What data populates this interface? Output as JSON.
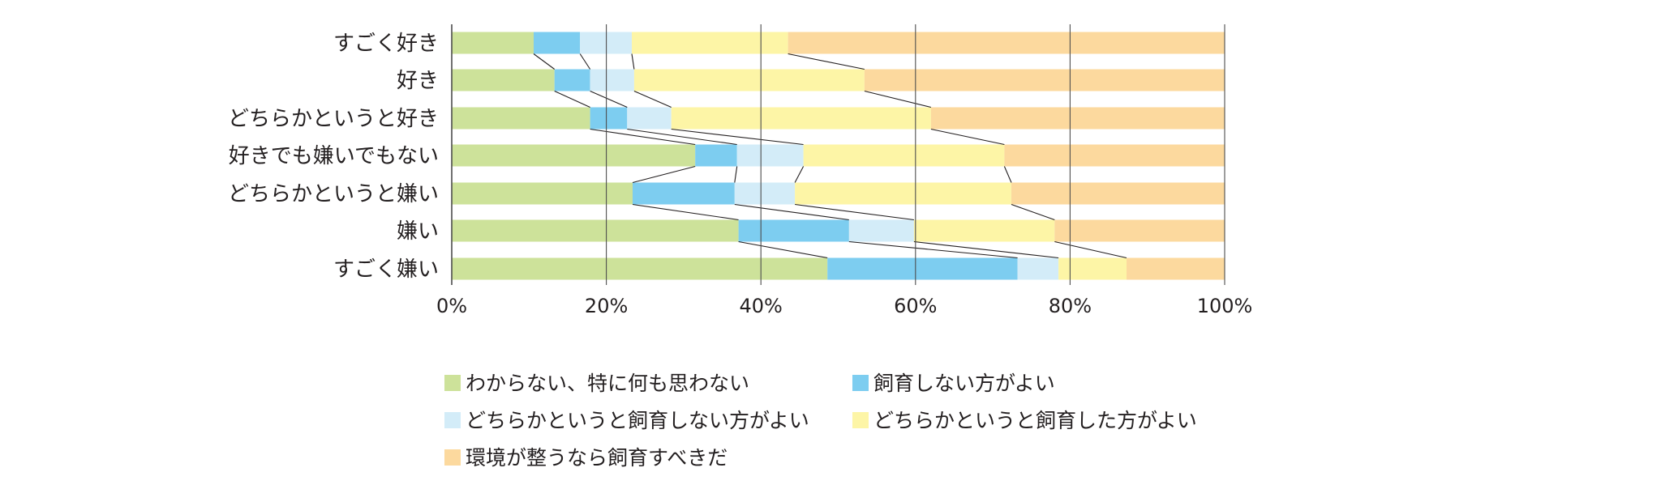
{
  "chart_data": {
    "type": "bar",
    "orientation": "horizontal",
    "stacked": true,
    "percent": true,
    "categories": [
      "すごく好き",
      "好き",
      "どちらかというと好き",
      "好きでも嫌いでもない",
      "どちらかというと嫌い",
      "嫌い",
      "すごく嫌い"
    ],
    "series": [
      {
        "name": "わからない、特に何も思わない",
        "color": "#cde29a",
        "values": [
          10.6,
          13.3,
          17.9,
          31.5,
          23.4,
          37.1,
          48.6
        ]
      },
      {
        "name": "飼育しない方がよい",
        "color": "#7dcdf0",
        "values": [
          6.0,
          4.6,
          4.8,
          5.4,
          13.2,
          14.3,
          24.6
        ]
      },
      {
        "name": "どちらかというと飼育しない方がよい",
        "color": "#d3ecf8",
        "values": [
          6.7,
          5.7,
          5.7,
          8.6,
          7.8,
          8.4,
          5.3
        ]
      },
      {
        "name": "どちらかというと飼育した方がよい",
        "color": "#fdf5a6",
        "values": [
          20.2,
          29.8,
          33.6,
          26.0,
          28.0,
          18.2,
          8.8
        ]
      },
      {
        "name": "環境が整うなら飼育すべきだ",
        "color": "#fcd99e",
        "values": [
          56.5,
          46.6,
          38.0,
          28.5,
          27.6,
          22.0,
          12.7
        ]
      }
    ],
    "xlim": [
      0,
      100
    ],
    "x_ticks": [
      0,
      20,
      40,
      60,
      80,
      100
    ],
    "x_tick_labels": [
      "0%",
      "20%",
      "40%",
      "60%",
      "80%",
      "100%"
    ],
    "grid": "vertical",
    "connector_lines": true,
    "legend_position": "bottom",
    "title": "",
    "xlabel": "",
    "ylabel": ""
  }
}
